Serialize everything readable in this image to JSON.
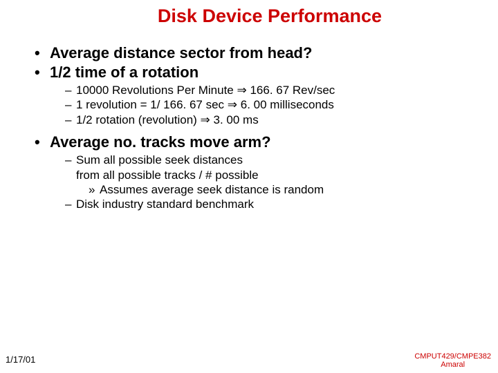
{
  "title": {
    "text": "Disk Device Performance",
    "color": "#cc0000",
    "fontsize": 27
  },
  "bullets": {
    "l1_fontsize": 22,
    "l2_fontsize": 17,
    "l3_fontsize": 17,
    "b1": "Average distance sector from head?",
    "b2": "1/2 time of a rotation",
    "b2_subs": {
      "s1_a": "10000 Revolutions Per Minute ",
      "s1_b": " 166. 67 Rev/sec",
      "s2_a": "1 revolution = 1/ 166. 67 sec ",
      "s2_b": " 6. 00 milliseconds",
      "s3_a": "1/2 rotation (revolution) ",
      "s3_b": " 3. 00 ms"
    },
    "b3": "Average no. tracks move arm?",
    "b3_subs": {
      "s1_line1": "Sum all possible seek distances",
      "s1_line2": "from all possible tracks / # possible",
      "s1_sub": "Assumes average seek distance is random",
      "s2": "Disk industry standard benchmark"
    }
  },
  "arrow_glyph": "⇒",
  "footer": {
    "date": "1/17/01",
    "date_fontsize": 13,
    "course_line1": "CMPUT429/CMPE382",
    "course_line2": "Amaral",
    "course_color": "#cc0000",
    "course_fontsize": 11
  }
}
